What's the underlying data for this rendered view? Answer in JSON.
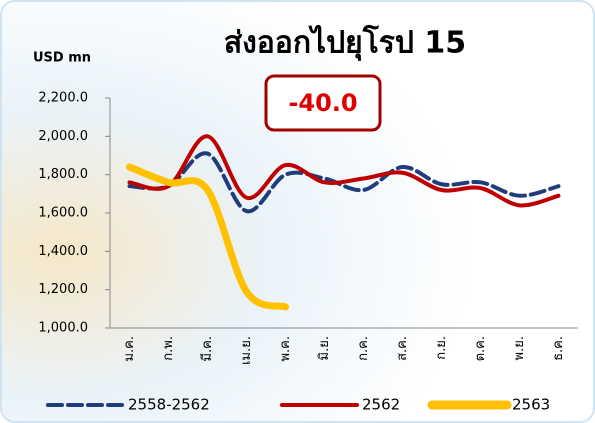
{
  "chart_data": {
    "type": "line",
    "title": "ส่งออกไปยุโรป 15",
    "y_label": "USD mn",
    "annotation": "-40.0",
    "categories": [
      "ม.ค.",
      "ก.พ.",
      "มี.ค.",
      "เม.ย.",
      "พ.ค.",
      "มิ.ย.",
      "ก.ค.",
      "ส.ค.",
      "ก.ย.",
      "ต.ค.",
      "พ.ย.",
      "ธ.ค."
    ],
    "series": [
      {
        "name": "2558-2562",
        "color": "#1f3d7a",
        "dashed": true,
        "values": [
          1740,
          1740,
          1910,
          1610,
          1800,
          1780,
          1720,
          1840,
          1750,
          1760,
          1690,
          1740
        ]
      },
      {
        "name": "2562",
        "color": "#c00000",
        "dashed": false,
        "values": [
          1760,
          1740,
          2000,
          1680,
          1850,
          1760,
          1780,
          1810,
          1720,
          1730,
          1640,
          1690
        ]
      },
      {
        "name": "2563",
        "color": "#ffc000",
        "dashed": false,
        "values": [
          1840,
          1760,
          1720,
          1190,
          1110,
          null,
          null,
          null,
          null,
          null,
          null,
          null
        ]
      }
    ],
    "ylim": [
      1000,
      2200
    ],
    "yticks": [
      {
        "value": 1000,
        "label": "1,000.0"
      },
      {
        "value": 1200,
        "label": "1,200.0"
      },
      {
        "value": 1400,
        "label": "1,400.0"
      },
      {
        "value": 1600,
        "label": "1,600.0"
      },
      {
        "value": 1800,
        "label": "1,800.0"
      },
      {
        "value": 2000,
        "label": "2,000.0"
      },
      {
        "value": 2200,
        "label": "2,200.0"
      }
    ]
  }
}
